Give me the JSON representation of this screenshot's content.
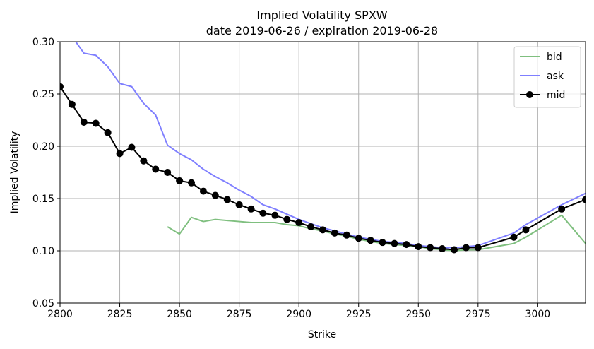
{
  "chart_data": {
    "type": "line",
    "title": "Implied Volatility SPXW",
    "subtitle": "date 2019-06-26 / expiration 2019-06-28",
    "xlabel": "Strike",
    "ylabel": "Implied Volatility",
    "xlim": [
      2800,
      3020
    ],
    "ylim": [
      0.05,
      0.3
    ],
    "xticks": [
      "2800",
      "2825",
      "2850",
      "2875",
      "2900",
      "2925",
      "2950",
      "2975",
      "3000"
    ],
    "yticks": [
      "0.05",
      "0.10",
      "0.15",
      "0.20",
      "0.25",
      "0.30"
    ],
    "grid": true,
    "legend_position": "top-right",
    "series": [
      {
        "name": "bid",
        "color": "#7fbf7f",
        "marker": "none",
        "x": [
          2845,
          2850,
          2855,
          2860,
          2865,
          2870,
          2875,
          2880,
          2885,
          2890,
          2895,
          2900,
          2905,
          2910,
          2915,
          2920,
          2925,
          2930,
          2935,
          2940,
          2945,
          2950,
          2955,
          2960,
          2965,
          2970,
          2975,
          2990,
          2995,
          3010,
          3020
        ],
        "y": [
          0.123,
          0.116,
          0.132,
          0.128,
          0.13,
          0.129,
          0.128,
          0.127,
          0.127,
          0.127,
          0.125,
          0.124,
          0.121,
          0.119,
          0.116,
          0.114,
          0.111,
          0.109,
          0.107,
          0.106,
          0.105,
          0.104,
          0.102,
          0.101,
          0.1,
          0.101,
          0.101,
          0.107,
          0.113,
          0.134,
          0.107
        ]
      },
      {
        "name": "ask",
        "color": "#7f7fff",
        "marker": "none",
        "x": [
          2800,
          2805,
          2810,
          2815,
          2820,
          2825,
          2830,
          2835,
          2840,
          2845,
          2850,
          2855,
          2860,
          2865,
          2870,
          2875,
          2880,
          2885,
          2890,
          2895,
          2900,
          2905,
          2910,
          2915,
          2920,
          2925,
          2930,
          2935,
          2940,
          2945,
          2950,
          2955,
          2960,
          2965,
          2970,
          2975,
          2990,
          2995,
          3010,
          3020
        ],
        "y": [
          0.315,
          0.305,
          0.289,
          0.287,
          0.276,
          0.26,
          0.257,
          0.241,
          0.23,
          0.201,
          0.193,
          0.187,
          0.178,
          0.171,
          0.165,
          0.158,
          0.152,
          0.144,
          0.14,
          0.135,
          0.13,
          0.126,
          0.122,
          0.119,
          0.116,
          0.113,
          0.111,
          0.109,
          0.108,
          0.107,
          0.105,
          0.104,
          0.103,
          0.103,
          0.104,
          0.105,
          0.117,
          0.125,
          0.144,
          0.155
        ]
      },
      {
        "name": "mid",
        "color": "#000000",
        "marker": "circle",
        "x": [
          2800,
          2805,
          2810,
          2815,
          2820,
          2825,
          2830,
          2835,
          2840,
          2845,
          2850,
          2855,
          2860,
          2865,
          2870,
          2875,
          2880,
          2885,
          2890,
          2895,
          2900,
          2905,
          2910,
          2915,
          2920,
          2925,
          2930,
          2935,
          2940,
          2945,
          2950,
          2955,
          2960,
          2965,
          2970,
          2975,
          2990,
          2995,
          3010,
          3020
        ],
        "y": [
          0.257,
          0.24,
          0.223,
          0.222,
          0.213,
          0.193,
          0.199,
          0.186,
          0.178,
          0.175,
          0.167,
          0.165,
          0.157,
          0.153,
          0.149,
          0.144,
          0.14,
          0.136,
          0.134,
          0.13,
          0.127,
          0.123,
          0.12,
          0.117,
          0.115,
          0.112,
          0.11,
          0.108,
          0.107,
          0.106,
          0.104,
          0.103,
          0.102,
          0.101,
          0.103,
          0.103,
          0.113,
          0.12,
          0.14,
          0.149
        ]
      }
    ]
  }
}
